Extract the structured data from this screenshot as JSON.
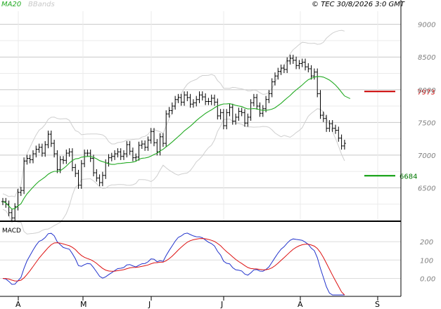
{
  "header": {
    "legend_ma": "MA20",
    "legend_bb": "BBands",
    "copyright": "© TEC 30/8/2026 3:0 GMT"
  },
  "colors": {
    "ma": "#22aa22",
    "bbands": "#cfcfcf",
    "resistance": "#cc0000",
    "support": "#009900",
    "macd": "#2233cc",
    "signal": "#dd1111"
  },
  "chart_data": [
    {
      "type": "ohlc",
      "panel": "price",
      "title": "",
      "ylim": [
        6000,
        9200
      ],
      "y_ticks": [
        6500,
        7000,
        7500,
        8000,
        8500,
        9000
      ],
      "x_tick_labels": [
        "A",
        "M",
        "J",
        "J",
        "A",
        "S"
      ],
      "grid": true,
      "close": [
        6290,
        6250,
        6120,
        6040,
        6210,
        6430,
        6460,
        6910,
        6950,
        6930,
        7020,
        7090,
        7120,
        7030,
        7160,
        7320,
        7180,
        7020,
        6780,
        6930,
        6920,
        7030,
        7050,
        6810,
        6720,
        6540,
        6870,
        7030,
        7030,
        6950,
        6730,
        6650,
        6580,
        6690,
        6880,
        6960,
        6980,
        7020,
        7050,
        6980,
        7020,
        7160,
        7060,
        6960,
        6970,
        7150,
        7170,
        7120,
        7230,
        7360,
        7190,
        7050,
        7280,
        7180,
        7630,
        7680,
        7750,
        7850,
        7880,
        7810,
        7920,
        7880,
        7780,
        7800,
        7850,
        7920,
        7890,
        7820,
        7820,
        7870,
        7810,
        7600,
        7650,
        7450,
        7650,
        7730,
        7520,
        7580,
        7670,
        7650,
        7490,
        7580,
        7800,
        7880,
        7750,
        7640,
        7710,
        7850,
        7940,
        8120,
        8210,
        8280,
        8330,
        8310,
        8440,
        8480,
        8450,
        8370,
        8400,
        8420,
        8350,
        8320,
        8210,
        8270,
        7940,
        7610,
        7560,
        7410,
        7480,
        7410,
        7380,
        7260,
        7140,
        7180
      ],
      "resistance_level": 7973,
      "support_level": 6684,
      "resistance_label": "7973",
      "support_label": "6684",
      "series": [
        {
          "name": "MA20"
        },
        {
          "name": "BBands"
        }
      ]
    },
    {
      "type": "line",
      "panel": "indicator",
      "label": "MACD",
      "ylim": [
        -90,
        300
      ],
      "y_ticks": [
        0,
        100,
        200
      ],
      "y_tick_labels": [
        "0.00",
        "100",
        "200"
      ],
      "grid": true
    }
  ]
}
